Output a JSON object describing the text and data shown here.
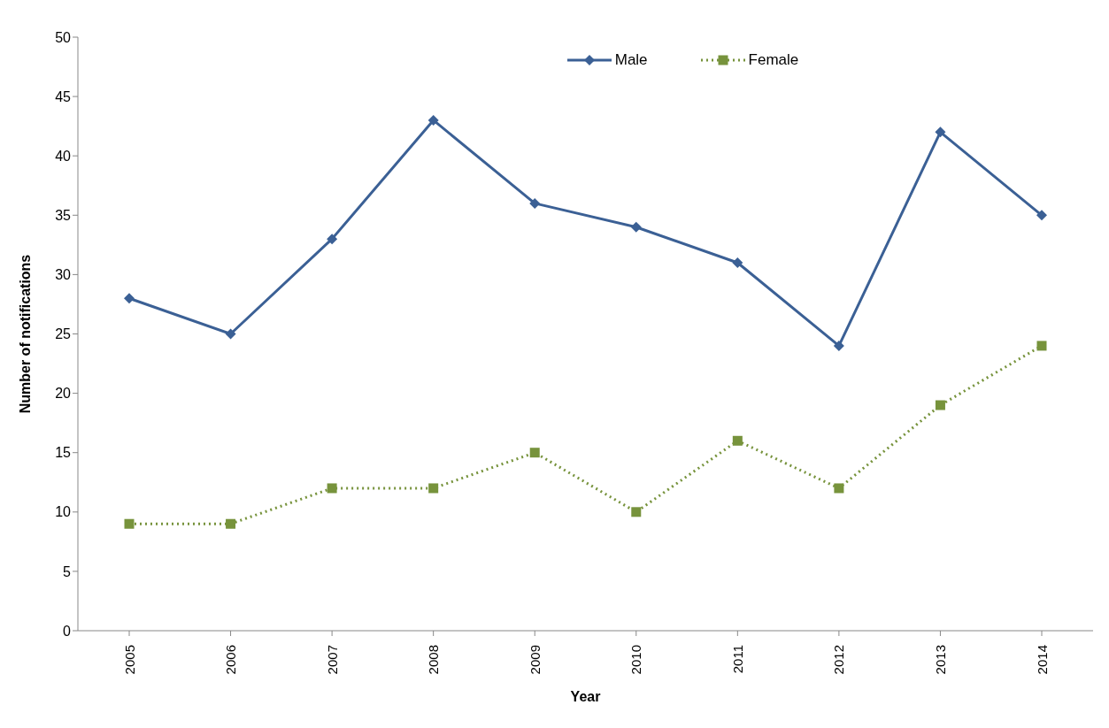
{
  "chart_data": {
    "type": "line",
    "xlabel": "Year",
    "ylabel": "Number of notifications",
    "categories": [
      "2005",
      "2006",
      "2007",
      "2008",
      "2009",
      "2010",
      "2011",
      "2012",
      "2013",
      "2014"
    ],
    "series": [
      {
        "name": "Male",
        "color": "#3b6095",
        "marker": "diamond",
        "line_style": "solid",
        "values": [
          28,
          25,
          33,
          43,
          36,
          34,
          31,
          24,
          42,
          35
        ]
      },
      {
        "name": "Female",
        "color": "#77933c",
        "marker": "square",
        "line_style": "dotted",
        "values": [
          9,
          9,
          12,
          12,
          15,
          10,
          16,
          12,
          19,
          24
        ]
      }
    ],
    "ylim": [
      0,
      50
    ],
    "yticks": [
      0,
      5,
      10,
      15,
      20,
      25,
      30,
      35,
      40,
      45,
      50
    ],
    "grid": false,
    "legend": "top"
  }
}
